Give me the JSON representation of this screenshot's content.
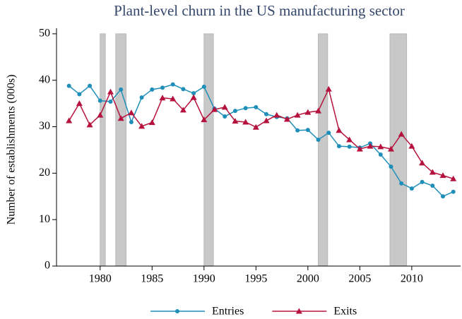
{
  "chart_data": {
    "type": "line",
    "title": "Plant-level churn in the US manufacturing sector",
    "y_label": "Number of establishments (000s)",
    "x": [
      1977,
      1978,
      1979,
      1980,
      1981,
      1982,
      1983,
      1984,
      1985,
      1986,
      1987,
      1988,
      1989,
      1990,
      1991,
      1992,
      1993,
      1994,
      1995,
      1996,
      1997,
      1998,
      1999,
      2000,
      2001,
      2002,
      2003,
      2004,
      2005,
      2006,
      2007,
      2008,
      2009,
      2010,
      2011,
      2012,
      2013,
      2014
    ],
    "series": [
      {
        "name": "Entries",
        "color": "#1f8fba",
        "marker": "circle",
        "values": [
          38.8,
          37.0,
          38.8,
          35.6,
          35.4,
          38.0,
          31.0,
          36.3,
          38.0,
          38.4,
          39.1,
          38.1,
          37.2,
          38.6,
          33.9,
          32.2,
          33.4,
          34.0,
          34.2,
          32.7,
          32.1,
          31.8,
          29.2,
          29.3,
          27.2,
          28.7,
          25.8,
          25.7,
          25.5,
          26.4,
          24.0,
          21.4,
          17.8,
          16.7,
          18.1,
          17.3,
          15.0,
          16.0
        ]
      },
      {
        "name": "Exits",
        "color": "#b5123e",
        "marker": "triangle",
        "values": [
          31.3,
          35.0,
          30.4,
          32.5,
          37.5,
          31.8,
          33.0,
          30.1,
          30.9,
          36.2,
          36.0,
          33.6,
          36.3,
          31.5,
          33.7,
          34.2,
          31.2,
          31.0,
          29.9,
          31.3,
          32.5,
          31.6,
          32.5,
          33.1,
          33.4,
          38.1,
          29.2,
          27.2,
          25.2,
          25.8,
          25.7,
          25.2,
          28.4,
          25.8,
          22.2,
          20.2,
          19.5,
          18.8
        ]
      }
    ],
    "recessions": [
      [
        1980.0,
        1980.5
      ],
      [
        1981.5,
        1982.5
      ],
      [
        1990.0,
        1990.9
      ],
      [
        2001.0,
        2001.9
      ],
      [
        2007.9,
        2009.5
      ]
    ],
    "xlim": [
      1975.8,
      2014.7
    ],
    "xticks": [
      1980,
      1985,
      1990,
      1995,
      2000,
      2005,
      2010
    ],
    "ylim": [
      0,
      51.2
    ],
    "yticks": [
      0,
      10,
      20,
      30,
      40,
      50
    ],
    "legend": "bottom"
  }
}
